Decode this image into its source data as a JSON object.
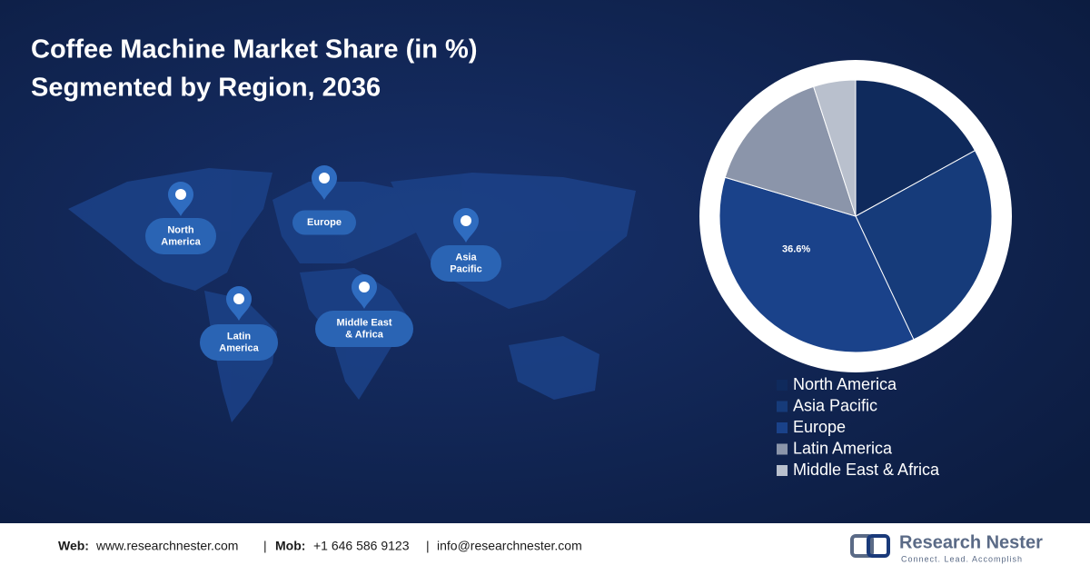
{
  "chart_data": {
    "type": "pie",
    "title": "Coffee Machine Market Share (in %)",
    "subtitle": "Segmented by Region, 2036",
    "categories": [
      "North America",
      "Asia Pacific",
      "Europe",
      "Latin America",
      "Middle East & Africa"
    ],
    "values": [
      17,
      26,
      36.6,
      15.4,
      5
    ],
    "value_labels": [
      null,
      null,
      "36.6%",
      null,
      null
    ],
    "colors": [
      "#0f2a5c",
      "#163b7a",
      "#1a428a",
      "#8b95aa",
      "#b9c0cd"
    ],
    "legend": "bottom"
  },
  "map": {
    "labels": [
      [
        "North",
        "America"
      ],
      [
        "Europe"
      ],
      [
        "Asia",
        "Pacific"
      ],
      [
        "Middle East",
        "& Africa"
      ],
      [
        "Latin",
        "America"
      ]
    ]
  },
  "footer": {
    "web_label": "Web:",
    "web": "www.researchnester.com",
    "separator": "|",
    "mob_label": "Mob:",
    "mob": "+1 646 586 9123",
    "email": "info@researchnester.com"
  },
  "logo": {
    "name": "Research Nester",
    "tagline": "Connect. Lead. Accomplish"
  }
}
